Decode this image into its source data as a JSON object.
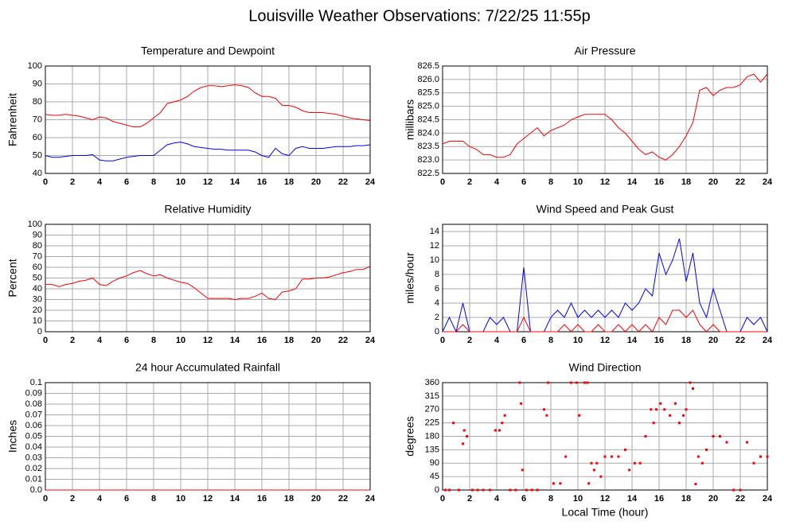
{
  "title": "Louisville Weather Observations: 7/22/25 11:55p",
  "chart_data": [
    {
      "type": "line",
      "title": "Temperature and Dewpoint",
      "ylabel": "Fahrenheit",
      "xlim": [
        0,
        24
      ],
      "xticks": [
        0,
        2,
        4,
        6,
        8,
        10,
        12,
        14,
        16,
        18,
        20,
        22,
        24
      ],
      "ylim": [
        40,
        100
      ],
      "yticks": [
        40,
        50,
        60,
        70,
        80,
        90,
        100
      ],
      "grid": true,
      "x": [
        0,
        0.5,
        1,
        1.5,
        2,
        2.5,
        3,
        3.5,
        4,
        4.5,
        5,
        5.5,
        6,
        6.5,
        7,
        7.5,
        8,
        8.5,
        9,
        9.5,
        10,
        10.5,
        11,
        11.5,
        12,
        12.5,
        13,
        13.5,
        14,
        14.5,
        15,
        15.5,
        16,
        16.5,
        17,
        17.5,
        18,
        18.5,
        19,
        19.5,
        20,
        20.5,
        21,
        21.5,
        22,
        22.5,
        23,
        23.5,
        24
      ],
      "series": [
        {
          "color": "#ff0000",
          "values": [
            73,
            72.5,
            72.5,
            73,
            72.5,
            72,
            71,
            70,
            71.5,
            71,
            69,
            68,
            67,
            66,
            66,
            68,
            71,
            74,
            79,
            80,
            81,
            83,
            86,
            88,
            89,
            89,
            88.5,
            89,
            89.5,
            89,
            88,
            85,
            83,
            83,
            82,
            78,
            78,
            77,
            75,
            74,
            74,
            74,
            73.5,
            73,
            72,
            71,
            70.5,
            70,
            69.5
          ]
        },
        {
          "color": "#0000ff",
          "values": [
            50,
            49,
            49,
            49.5,
            50,
            50,
            50,
            50.5,
            47.5,
            47,
            47,
            48,
            49,
            49.5,
            50,
            50,
            50,
            53,
            56,
            57,
            57.5,
            56.5,
            55,
            54.5,
            54,
            53.5,
            53.5,
            53,
            53,
            53,
            53,
            52,
            50,
            49,
            54,
            51,
            50,
            54,
            55,
            54,
            54,
            54,
            54.5,
            55,
            55,
            55,
            55.5,
            55.5,
            56
          ]
        }
      ]
    },
    {
      "type": "line",
      "title": "Air Pressure",
      "ylabel": "millibars",
      "xlim": [
        0,
        24
      ],
      "xticks": [
        0,
        2,
        4,
        6,
        8,
        10,
        12,
        14,
        16,
        18,
        20,
        22,
        24
      ],
      "ylim": [
        822.5,
        826.5
      ],
      "yticks": [
        822.5,
        {
          "value": 823,
          "label": "823.0"
        },
        823.5,
        {
          "value": 824,
          "label": "824.0"
        },
        824.5,
        {
          "value": 825,
          "label": "825.0"
        },
        825.5,
        {
          "value": 826,
          "label": "826.0"
        },
        826.5
      ],
      "grid": true,
      "x": [
        0,
        0.5,
        1,
        1.5,
        2,
        2.5,
        3,
        3.5,
        4,
        4.5,
        5,
        5.5,
        6,
        6.5,
        7,
        7.5,
        8,
        8.5,
        9,
        9.5,
        10,
        10.5,
        11,
        11.5,
        12,
        12.5,
        13,
        13.5,
        14,
        14.5,
        15,
        15.5,
        16,
        16.5,
        17,
        17.5,
        18,
        18.5,
        19,
        19.5,
        20,
        20.5,
        21,
        21.5,
        22,
        22.5,
        23,
        23.5,
        24
      ],
      "series": [
        {
          "color": "#ff0000",
          "values": [
            823.6,
            823.7,
            823.7,
            823.7,
            823.5,
            823.4,
            823.2,
            823.2,
            823.1,
            823.1,
            823.2,
            823.6,
            823.8,
            824,
            824.2,
            823.9,
            824.1,
            824.2,
            824.3,
            824.5,
            824.6,
            824.7,
            824.7,
            824.7,
            824.7,
            824.5,
            824.2,
            824,
            823.7,
            823.4,
            823.2,
            823.3,
            823.1,
            823,
            823.2,
            823.5,
            823.9,
            824.4,
            825.6,
            825.7,
            825.4,
            825.6,
            825.7,
            825.7,
            825.8,
            826.1,
            826.2,
            825.9,
            826.2
          ]
        }
      ]
    },
    {
      "type": "line",
      "title": "Relative Humidity",
      "ylabel": "Percent",
      "xlim": [
        0,
        24
      ],
      "xticks": [
        0,
        2,
        4,
        6,
        8,
        10,
        12,
        14,
        16,
        18,
        20,
        22,
        24
      ],
      "ylim": [
        0,
        100
      ],
      "yticks": [
        0,
        10,
        20,
        30,
        40,
        50,
        60,
        70,
        80,
        90,
        100
      ],
      "grid": true,
      "x": [
        0,
        0.5,
        1,
        1.5,
        2,
        2.5,
        3,
        3.5,
        4,
        4.5,
        5,
        5.5,
        6,
        6.5,
        7,
        7.5,
        8,
        8.5,
        9,
        9.5,
        10,
        10.5,
        11,
        11.5,
        12,
        12.5,
        13,
        13.5,
        14,
        14.5,
        15,
        15.5,
        16,
        16.5,
        17,
        17.5,
        18,
        18.5,
        19,
        19.5,
        20,
        20.5,
        21,
        21.5,
        22,
        22.5,
        23,
        23.5,
        24
      ],
      "series": [
        {
          "color": "#ff0000",
          "values": [
            44,
            44,
            42,
            44,
            45,
            47,
            48,
            50,
            44,
            43,
            47,
            50,
            52,
            55,
            57,
            54,
            52,
            53,
            50,
            48,
            46,
            45,
            41,
            36,
            31,
            31,
            31,
            31,
            30,
            31,
            31,
            33,
            36,
            31,
            30,
            37,
            38,
            40,
            49,
            49,
            50,
            50,
            51,
            53,
            55,
            56,
            58,
            58,
            61
          ]
        }
      ]
    },
    {
      "type": "line",
      "title": "Wind Speed and Peak Gust",
      "ylabel": "miles/hour",
      "xlim": [
        0,
        24
      ],
      "xticks": [
        0,
        2,
        4,
        6,
        8,
        10,
        12,
        14,
        16,
        18,
        20,
        22,
        24
      ],
      "ylim": [
        0,
        15
      ],
      "yticks": [
        0,
        2,
        4,
        6,
        8,
        10,
        12,
        14
      ],
      "grid": true,
      "x": [
        0,
        0.5,
        1,
        1.5,
        2,
        2.5,
        3,
        3.5,
        4,
        4.5,
        5,
        5.5,
        6,
        6.5,
        7,
        7.5,
        8,
        8.5,
        9,
        9.5,
        10,
        10.5,
        11,
        11.5,
        12,
        12.5,
        13,
        13.5,
        14,
        14.5,
        15,
        15.5,
        16,
        16.5,
        17,
        17.5,
        18,
        18.5,
        19,
        19.5,
        20,
        20.5,
        21,
        21.5,
        22,
        22.5,
        23,
        23.5,
        24
      ],
      "series": [
        {
          "color": "#0000ff",
          "values": [
            0,
            2,
            0,
            4,
            0,
            0,
            0,
            2,
            1,
            2,
            0,
            0,
            9,
            0,
            0,
            0,
            2,
            3,
            2,
            4,
            2,
            3,
            2,
            3,
            2,
            3,
            2,
            4,
            3,
            4,
            6,
            5,
            11,
            8,
            10,
            13,
            7,
            11,
            4,
            2,
            6,
            3,
            0,
            0,
            0,
            2,
            1,
            2,
            0
          ]
        },
        {
          "color": "#ff0000",
          "values": [
            0,
            0,
            0,
            1,
            0,
            0,
            0,
            0,
            0,
            0,
            0,
            0,
            2,
            0,
            0,
            0,
            0,
            0,
            1,
            0,
            1,
            0,
            0,
            1,
            0,
            0,
            1,
            0,
            1,
            0,
            1,
            0,
            2,
            1,
            3,
            3,
            2,
            3,
            1,
            0,
            1,
            0,
            0,
            0,
            0,
            0,
            0,
            0,
            0
          ]
        }
      ]
    },
    {
      "type": "line",
      "title": "24 hour Accumulated Rainfall",
      "ylabel": "Inches",
      "xlim": [
        0,
        24
      ],
      "xticks": [
        0,
        2,
        4,
        6,
        8,
        10,
        12,
        14,
        16,
        18,
        20,
        22,
        24
      ],
      "ylim": [
        0,
        0.1
      ],
      "yticks": [
        {
          "value": 0,
          "label": "0.0"
        },
        0.01,
        0.02,
        0.03,
        0.04,
        0.05,
        0.06,
        0.07,
        0.08,
        0.09,
        0.1
      ],
      "grid": true,
      "x": [
        0,
        24
      ],
      "series": [
        {
          "color": "#ff0000",
          "values": [
            0,
            0
          ]
        }
      ]
    },
    {
      "type": "scatter",
      "title": "Wind Direction",
      "ylabel": "degrees",
      "xlabel": "Local Time (hour)",
      "xlim": [
        0,
        24
      ],
      "xticks": [
        0,
        2,
        4,
        6,
        8,
        10,
        12,
        14,
        16,
        18,
        20,
        22,
        24
      ],
      "ylim": [
        0,
        360
      ],
      "yticks": [
        0,
        45,
        90,
        135,
        180,
        225,
        270,
        315,
        360
      ],
      "grid": true,
      "x": [
        0.2,
        0.5,
        0.8,
        1.2,
        1.5,
        1.6,
        1.8,
        2.2,
        2.6,
        3,
        3.5,
        3.9,
        4.2,
        4.4,
        4.6,
        5,
        5.4,
        5.7,
        5.8,
        5.9,
        6.2,
        6.6,
        7,
        7.5,
        7.7,
        7.8,
        8.2,
        8.7,
        9.1,
        9.5,
        9.9,
        10.1,
        10.5,
        10.7,
        10.8,
        11,
        11.2,
        11.4,
        11.7,
        12,
        12.5,
        13,
        13.5,
        13.8,
        14.2,
        14.6,
        15,
        15.4,
        15.6,
        15.8,
        16.1,
        16.4,
        16.8,
        17.2,
        17.5,
        17.8,
        18,
        18.3,
        18.5,
        18.7,
        18.9,
        19.2,
        19.5,
        20,
        20.5,
        21,
        21.5,
        22,
        22.5,
        23,
        23.5,
        24
      ],
      "series": [
        {
          "color": "#ff0000",
          "values": [
            0,
            0,
            225,
            0,
            155,
            200,
            180,
            0,
            0,
            0,
            0,
            200,
            200,
            225,
            250,
            0,
            0,
            360,
            290,
            67,
            0,
            0,
            0,
            270,
            250,
            360,
            22,
            22,
            112,
            360,
            360,
            250,
            360,
            360,
            22,
            90,
            67,
            90,
            45,
            112,
            112,
            112,
            135,
            67,
            90,
            90,
            180,
            270,
            225,
            270,
            290,
            270,
            250,
            290,
            225,
            250,
            270,
            360,
            340,
            20,
            112,
            90,
            135,
            180,
            180,
            160,
            0,
            0,
            160,
            90,
            112,
            112
          ]
        }
      ]
    }
  ]
}
